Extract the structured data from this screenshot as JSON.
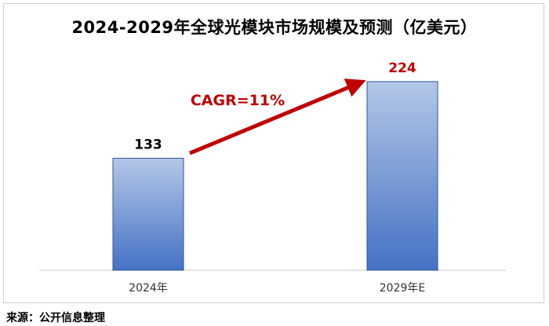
{
  "chart_data": {
    "type": "bar",
    "title": "2024-2029年全球光模块市场规模及预测（亿美元）",
    "categories": [
      "2024年",
      "2029年E"
    ],
    "values": [
      133,
      224
    ],
    "ylim": [
      0,
      250
    ],
    "grid": false,
    "legend": "none",
    "value_label_colors": [
      "#000000",
      "#C00000"
    ],
    "annotation": {
      "text": "CAGR=11%",
      "color": "#C00000"
    },
    "bar_color_top": "#B4C7E7",
    "bar_color_bottom": "#4472C4"
  },
  "source": "来源：公开信息整理"
}
